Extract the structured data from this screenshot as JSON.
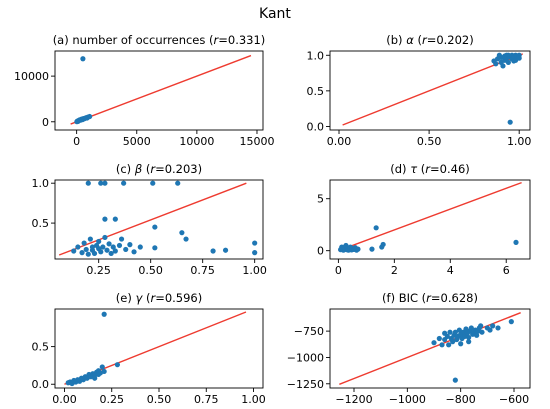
{
  "figure": {
    "title": "Kant"
  },
  "colors": {
    "points": "#1f77b4",
    "fit_line": "#ee3b30"
  },
  "chart_data": [
    {
      "type": "scatter",
      "title": "(a) number of occurrences (r=0.331)",
      "title_parts": [
        "(a) number of occurrences (",
        "r",
        "=0.331)"
      ],
      "xlim": [
        -1800,
        15500
      ],
      "ylim": [
        -1800,
        15500
      ],
      "xticks": [
        0,
        5000,
        10000,
        15000
      ],
      "xtick_labels": [
        "0",
        "5000",
        "10000",
        "15000"
      ],
      "yticks": [
        0,
        10000
      ],
      "ytick_labels": [
        "0",
        "10000"
      ],
      "fit_line": [
        [
          -500,
          -500
        ],
        [
          14500,
          14500
        ]
      ],
      "points": [
        [
          520,
          13800
        ],
        [
          20,
          20
        ],
        [
          60,
          150
        ],
        [
          110,
          90
        ],
        [
          160,
          250
        ],
        [
          200,
          330
        ],
        [
          260,
          420
        ],
        [
          320,
          360
        ],
        [
          380,
          520
        ],
        [
          430,
          600
        ],
        [
          500,
          480
        ],
        [
          560,
          700
        ],
        [
          620,
          650
        ],
        [
          700,
          760
        ],
        [
          780,
          880
        ],
        [
          860,
          820
        ],
        [
          940,
          1020
        ],
        [
          1080,
          1150
        ]
      ]
    },
    {
      "type": "scatter",
      "title": "(b) α (r=0.202)",
      "title_parts": [
        "(b) ",
        "α",
        " (",
        "r",
        "=0.202)"
      ],
      "xlim": [
        -0.05,
        1.06
      ],
      "ylim": [
        -0.05,
        1.06
      ],
      "xticks": [
        0,
        0.5,
        1
      ],
      "xtick_labels": [
        "0.00",
        "0.50",
        "1.00"
      ],
      "yticks": [
        0,
        0.5,
        1
      ],
      "ytick_labels": [
        "0.0",
        "0.5",
        "1.0"
      ],
      "fit_line": [
        [
          0.02,
          0.02
        ],
        [
          1.02,
          1.02
        ]
      ],
      "points": [
        [
          0.95,
          0.06
        ],
        [
          0.86,
          0.92
        ],
        [
          0.87,
          0.88
        ],
        [
          0.88,
          0.95
        ],
        [
          0.89,
          1.0
        ],
        [
          0.9,
          0.9
        ],
        [
          0.9,
          0.97
        ],
        [
          0.91,
          0.85
        ],
        [
          0.92,
          0.99
        ],
        [
          0.92,
          0.93
        ],
        [
          0.93,
          0.96
        ],
        [
          0.94,
          1.0
        ],
        [
          0.94,
          0.9
        ],
        [
          0.95,
          0.98
        ],
        [
          0.96,
          0.95
        ],
        [
          0.96,
          1.0
        ],
        [
          0.97,
          0.97
        ],
        [
          0.98,
          1.0
        ],
        [
          0.98,
          0.93
        ],
        [
          0.99,
          0.99
        ],
        [
          1.0,
          1.0
        ],
        [
          1.0,
          0.96
        ],
        [
          0.97,
          0.92
        ],
        [
          0.93,
          1.0
        ]
      ]
    },
    {
      "type": "scatter",
      "title": "(c) β (r=0.203)",
      "title_parts": [
        "(c) ",
        "β",
        " (",
        "r",
        "=0.203)"
      ],
      "xlim": [
        0.04,
        1.04
      ],
      "ylim": [
        0.05,
        1.04
      ],
      "xticks": [
        0.25,
        0.5,
        0.75,
        1
      ],
      "xtick_labels": [
        "0.25",
        "0.50",
        "0.75",
        "1.00"
      ],
      "yticks": [
        0.5,
        1
      ],
      "ytick_labels": [
        "0.5",
        "1.0"
      ],
      "fit_line": [
        [
          0.06,
          0.1
        ],
        [
          0.96,
          1.0
        ]
      ],
      "points": [
        [
          0.2,
          1.0
        ],
        [
          0.26,
          1.0
        ],
        [
          0.28,
          1.0
        ],
        [
          0.37,
          1.0
        ],
        [
          0.51,
          1.0
        ],
        [
          0.63,
          1.0
        ],
        [
          0.65,
          0.38
        ],
        [
          0.52,
          0.45
        ],
        [
          0.33,
          0.55
        ],
        [
          0.28,
          0.55
        ],
        [
          0.67,
          0.3
        ],
        [
          0.8,
          0.15
        ],
        [
          0.86,
          0.16
        ],
        [
          1.0,
          0.25
        ],
        [
          1.0,
          0.13
        ],
        [
          0.52,
          0.19
        ],
        [
          0.4,
          0.23
        ],
        [
          0.13,
          0.15
        ],
        [
          0.15,
          0.2
        ],
        [
          0.17,
          0.13
        ],
        [
          0.18,
          0.25
        ],
        [
          0.19,
          0.17
        ],
        [
          0.2,
          0.11
        ],
        [
          0.21,
          0.3
        ],
        [
          0.22,
          0.16
        ],
        [
          0.22,
          0.2
        ],
        [
          0.23,
          0.12
        ],
        [
          0.24,
          0.22
        ],
        [
          0.25,
          0.18
        ],
        [
          0.25,
          0.27
        ],
        [
          0.26,
          0.14
        ],
        [
          0.27,
          0.2
        ],
        [
          0.28,
          0.32
        ],
        [
          0.29,
          0.16
        ],
        [
          0.3,
          0.24
        ],
        [
          0.31,
          0.12
        ],
        [
          0.32,
          0.2
        ],
        [
          0.33,
          0.15
        ],
        [
          0.35,
          0.22
        ],
        [
          0.36,
          0.3
        ],
        [
          0.38,
          0.17
        ],
        [
          0.42,
          0.14
        ],
        [
          0.45,
          0.2
        ]
      ]
    },
    {
      "type": "scatter",
      "title": "(d) τ (r=0.46)",
      "title_parts": [
        "(d) ",
        "τ",
        " (",
        "r",
        "=0.46)"
      ],
      "xlim": [
        -0.3,
        6.85
      ],
      "ylim": [
        -0.8,
        6.8
      ],
      "xticks": [
        0,
        2,
        4,
        6
      ],
      "xtick_labels": [
        "0",
        "2",
        "4",
        "6"
      ],
      "yticks": [
        0,
        5
      ],
      "ytick_labels": [
        "0",
        "5"
      ],
      "fit_line": [
        [
          0.0,
          0.0
        ],
        [
          6.55,
          6.55
        ]
      ],
      "points": [
        [
          1.35,
          2.2
        ],
        [
          6.35,
          0.8
        ],
        [
          1.6,
          0.6
        ],
        [
          1.55,
          0.35
        ],
        [
          1.2,
          0.15
        ],
        [
          0.08,
          0.1
        ],
        [
          0.12,
          0.35
        ],
        [
          0.15,
          0.2
        ],
        [
          0.18,
          0.05
        ],
        [
          0.2,
          0.3
        ],
        [
          0.24,
          0.15
        ],
        [
          0.27,
          0.5
        ],
        [
          0.3,
          0.1
        ],
        [
          0.33,
          0.25
        ],
        [
          0.36,
          0.05
        ],
        [
          0.4,
          0.18
        ],
        [
          0.43,
          0.35
        ],
        [
          0.47,
          0.08
        ],
        [
          0.5,
          0.22
        ],
        [
          0.55,
          0.12
        ],
        [
          0.6,
          0.3
        ],
        [
          0.65,
          0.05
        ],
        [
          0.7,
          0.15
        ]
      ]
    },
    {
      "type": "scatter",
      "title": "(e) γ (r=0.596)",
      "title_parts": [
        "(e) ",
        "γ",
        " (",
        "r",
        "=0.596)"
      ],
      "xlim": [
        -0.05,
        1.05
      ],
      "ylim": [
        -0.05,
        1.0
      ],
      "xticks": [
        0,
        0.25,
        0.5,
        0.75,
        1
      ],
      "xtick_labels": [
        "0.00",
        "0.25",
        "0.50",
        "0.75",
        "1.00"
      ],
      "yticks": [
        0,
        0.5
      ],
      "ytick_labels": [
        "0.0",
        "0.5"
      ],
      "fit_line": [
        [
          0.0,
          0.0
        ],
        [
          0.96,
          0.96
        ]
      ],
      "points": [
        [
          0.21,
          0.93
        ],
        [
          0.28,
          0.26
        ],
        [
          0.2,
          0.23
        ],
        [
          0.02,
          0.02
        ],
        [
          0.03,
          0.03
        ],
        [
          0.04,
          0.01
        ],
        [
          0.05,
          0.05
        ],
        [
          0.06,
          0.03
        ],
        [
          0.07,
          0.06
        ],
        [
          0.08,
          0.04
        ],
        [
          0.09,
          0.08
        ],
        [
          0.1,
          0.06
        ],
        [
          0.11,
          0.1
        ],
        [
          0.12,
          0.08
        ],
        [
          0.13,
          0.13
        ],
        [
          0.14,
          0.1
        ],
        [
          0.15,
          0.14
        ],
        [
          0.16,
          0.12
        ],
        [
          0.17,
          0.16
        ],
        [
          0.18,
          0.13
        ],
        [
          0.18,
          0.18
        ],
        [
          0.19,
          0.15
        ],
        [
          0.21,
          0.17
        ],
        [
          0.16,
          0.08
        ]
      ]
    },
    {
      "type": "scatter",
      "title": "(f) BIC (r=0.628)",
      "title_parts": [
        "(f) BIC (",
        "r",
        "=0.628)"
      ],
      "xlim": [
        -1290,
        -540
      ],
      "ylim": [
        -1290,
        -540
      ],
      "xticks": [
        -1200,
        -1000,
        -800,
        -600
      ],
      "xtick_labels": [
        "−1200",
        "−1000",
        "−800",
        "−600"
      ],
      "yticks": [
        -1250,
        -1000,
        -750
      ],
      "ytick_labels": [
        "−1250",
        "−1000",
        "−750"
      ],
      "fit_line": [
        [
          -1255,
          -1255
        ],
        [
          -575,
          -575
        ]
      ],
      "points": [
        [
          -820,
          -1215
        ],
        [
          -610,
          -660
        ],
        [
          -680,
          -700
        ],
        [
          -900,
          -860
        ],
        [
          -870,
          -880
        ],
        [
          -860,
          -830
        ],
        [
          -850,
          -800
        ],
        [
          -845,
          -880
        ],
        [
          -840,
          -760
        ],
        [
          -835,
          -820
        ],
        [
          -830,
          -850
        ],
        [
          -825,
          -790
        ],
        [
          -820,
          -760
        ],
        [
          -815,
          -830
        ],
        [
          -810,
          -800
        ],
        [
          -805,
          -740
        ],
        [
          -800,
          -780
        ],
        [
          -795,
          -820
        ],
        [
          -790,
          -760
        ],
        [
          -785,
          -800
        ],
        [
          -780,
          -730
        ],
        [
          -775,
          -770
        ],
        [
          -770,
          -810
        ],
        [
          -765,
          -750
        ],
        [
          -760,
          -720
        ],
        [
          -755,
          -780
        ],
        [
          -750,
          -760
        ],
        [
          -745,
          -740
        ],
        [
          -740,
          -790
        ],
        [
          -735,
          -750
        ],
        [
          -730,
          -720
        ],
        [
          -725,
          -700
        ],
        [
          -720,
          -760
        ],
        [
          -700,
          -720
        ],
        [
          -690,
          -740
        ],
        [
          -660,
          -720
        ],
        [
          -880,
          -820
        ],
        [
          -860,
          -770
        ],
        [
          -800,
          -870
        ],
        [
          -770,
          -850
        ]
      ]
    }
  ]
}
